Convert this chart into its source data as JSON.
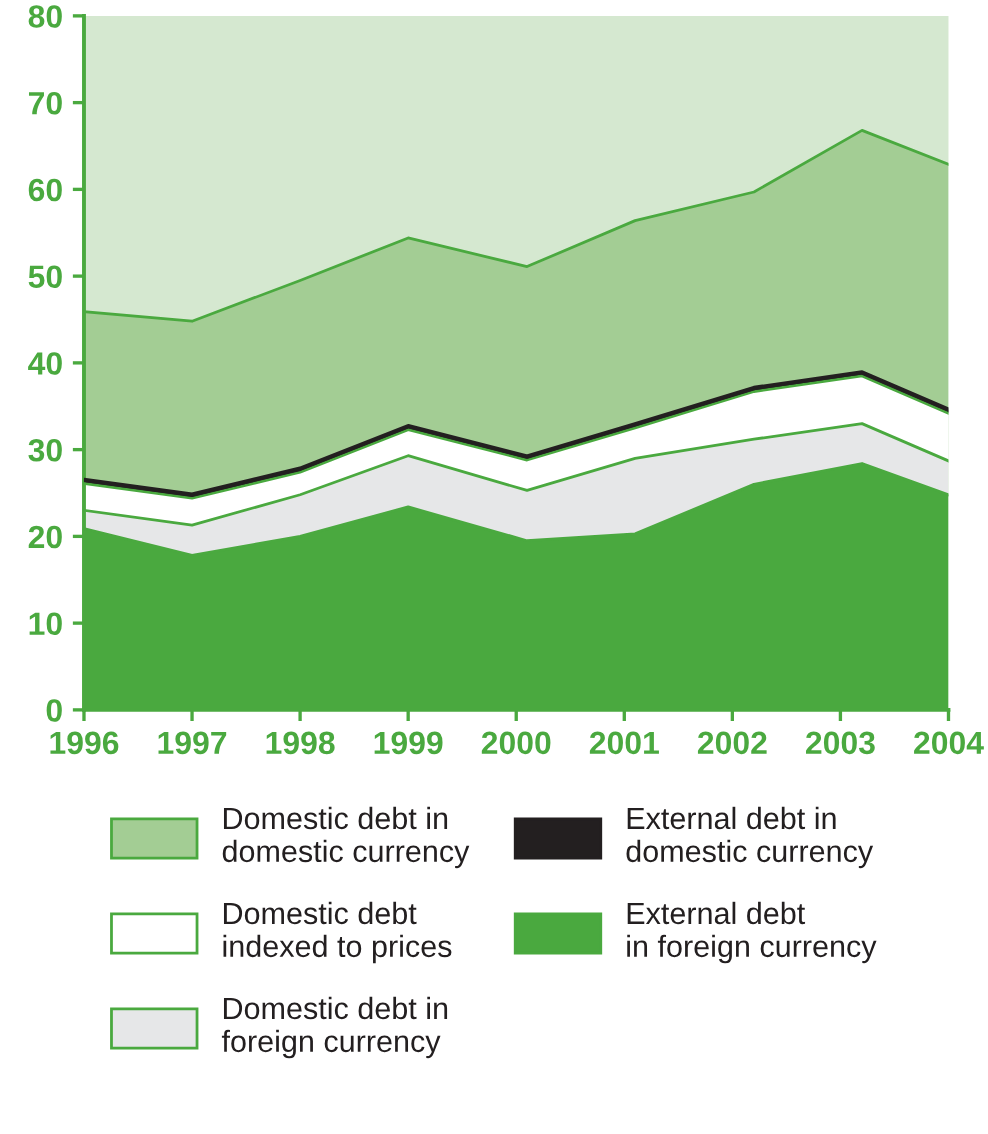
{
  "chart_data": {
    "type": "area",
    "stacked": true,
    "x": [
      1996,
      1997,
      1998,
      1999,
      2000.1,
      2001.1,
      2002.2,
      2003.2,
      2004
    ],
    "series": [
      {
        "name": "External debt\nin foreign currency",
        "color": "#4aa93f",
        "values": [
          20.9,
          17.8,
          20.0,
          23.4,
          19.5,
          20.3,
          26.0,
          28.4,
          24.8
        ]
      },
      {
        "name": "Domestic debt in\nforeign currency",
        "color": "#e6e7e8",
        "values": [
          2.1,
          3.5,
          4.8,
          5.9,
          5.8,
          8.7,
          5.2,
          4.6,
          3.9
        ]
      },
      {
        "name": "Domestic debt\nindexed to prices",
        "color": "#ffffff",
        "values": [
          3.1,
          3.1,
          2.6,
          3.0,
          3.5,
          3.5,
          5.5,
          5.5,
          5.5
        ]
      },
      {
        "name": "External debt in\ndomestic currency",
        "color": "#231f20",
        "values": [
          0.4,
          0.4,
          0.4,
          0.4,
          0.4,
          0.4,
          0.4,
          0.4,
          0.4
        ]
      },
      {
        "name": "Domestic debt in\ndomestic currency",
        "color": "#a3cd94",
        "values": [
          19.4,
          20.0,
          21.7,
          21.7,
          21.9,
          23.5,
          22.6,
          27.9,
          28.3
        ]
      }
    ],
    "xlim": [
      1996,
      2004
    ],
    "xticks": [
      1996,
      1997,
      1998,
      1999,
      2000,
      2001,
      2002,
      2003,
      2004
    ],
    "ylim": [
      0,
      80
    ],
    "yticks": [
      0,
      10,
      20,
      30,
      40,
      50,
      60,
      70,
      80
    ],
    "grid": false,
    "legend": "bottom"
  }
}
